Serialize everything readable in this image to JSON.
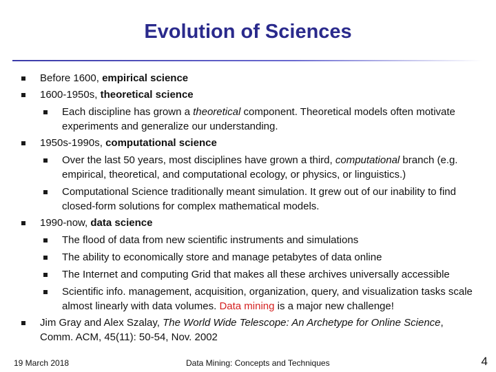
{
  "title": "Evolution of Sciences",
  "bullets": [
    {
      "runs": [
        {
          "text": "Before 1600, "
        },
        {
          "text": "empirical science",
          "style": "bold"
        }
      ]
    },
    {
      "runs": [
        {
          "text": "1600-1950s, "
        },
        {
          "text": "theoretical science",
          "style": "bold"
        }
      ],
      "subs": [
        {
          "runs": [
            {
              "text": "Each discipline has grown a "
            },
            {
              "text": "theoretical",
              "style": "italic"
            },
            {
              "text": " component. Theoretical models often motivate experiments and generalize our understanding."
            }
          ]
        }
      ]
    },
    {
      "runs": [
        {
          "text": "1950s-1990s, "
        },
        {
          "text": "computational science",
          "style": "bold"
        }
      ],
      "subs": [
        {
          "runs": [
            {
              "text": "Over the last 50 years, most disciplines have grown a third, "
            },
            {
              "text": "computational",
              "style": "italic"
            },
            {
              "text": " branch (e.g. empirical, theoretical, and computational ecology, or physics, or linguistics.)"
            }
          ]
        },
        {
          "runs": [
            {
              "text": "Computational Science traditionally meant simulation. It grew out of our inability to find closed-form solutions for complex mathematical models."
            }
          ]
        }
      ]
    },
    {
      "runs": [
        {
          "text": "1990-now, "
        },
        {
          "text": "data science",
          "style": "bold"
        }
      ],
      "subs": [
        {
          "runs": [
            {
              "text": "The flood of data from new scientific instruments and simulations"
            }
          ]
        },
        {
          "runs": [
            {
              "text": "The ability to economically store and manage petabytes of data online"
            }
          ]
        },
        {
          "runs": [
            {
              "text": "The Internet and computing Grid that makes all these archives universally accessible"
            }
          ]
        },
        {
          "runs": [
            {
              "text": "Scientific info. management, acquisition, organization, query, and visualization tasks scale almost linearly with data volumes.  "
            },
            {
              "text": "Data mining",
              "style": "red"
            },
            {
              "text": " is a major new challenge!"
            }
          ]
        }
      ]
    },
    {
      "runs": [
        {
          "text": "Jim Gray and Alex Szalay, "
        },
        {
          "text": "The World Wide Telescope: An Archetype for Online Science",
          "style": "italic"
        },
        {
          "text": ", Comm. ACM, 45(11): 50-54, Nov. 2002"
        }
      ]
    }
  ],
  "footer": {
    "date": "19 March 2018",
    "title": "Data Mining: Concepts and Techniques",
    "page": "4"
  }
}
